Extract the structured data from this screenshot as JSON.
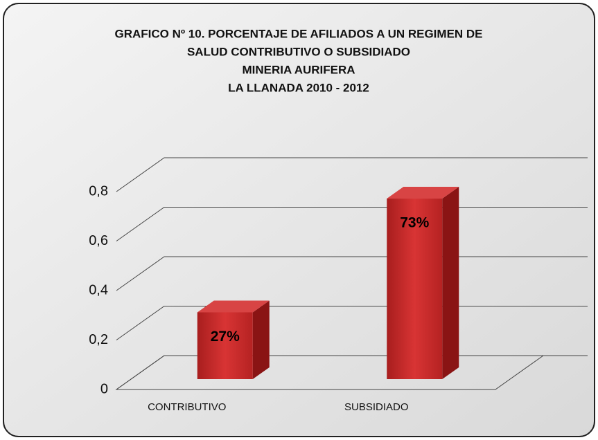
{
  "chart_data": {
    "type": "bar3d",
    "title": [
      "GRAFICO Nº 10.  PORCENTAJE DE AFILIADOS A UN REGIMEN DE",
      "SALUD CONTRIBUTIVO O SUBSIDIADO",
      "MINERIA AURIFERA",
      "LA LLANADA 2010 - 2012"
    ],
    "categories": [
      "CONTRIBUTIVO",
      "SUBSIDIADO"
    ],
    "values": [
      0.27,
      0.73
    ],
    "value_labels": [
      "27%",
      "73%"
    ],
    "color": "#c62a2a",
    "ylim": [
      0,
      0.8
    ],
    "yticks": [
      0,
      {
        "value": 0.2,
        "label": "0,2"
      },
      {
        "value": 0.4,
        "label": "0,4"
      },
      {
        "value": 0.6,
        "label": "0,6"
      },
      {
        "value": 0.8,
        "label": "0,8"
      }
    ],
    "grid": true
  }
}
